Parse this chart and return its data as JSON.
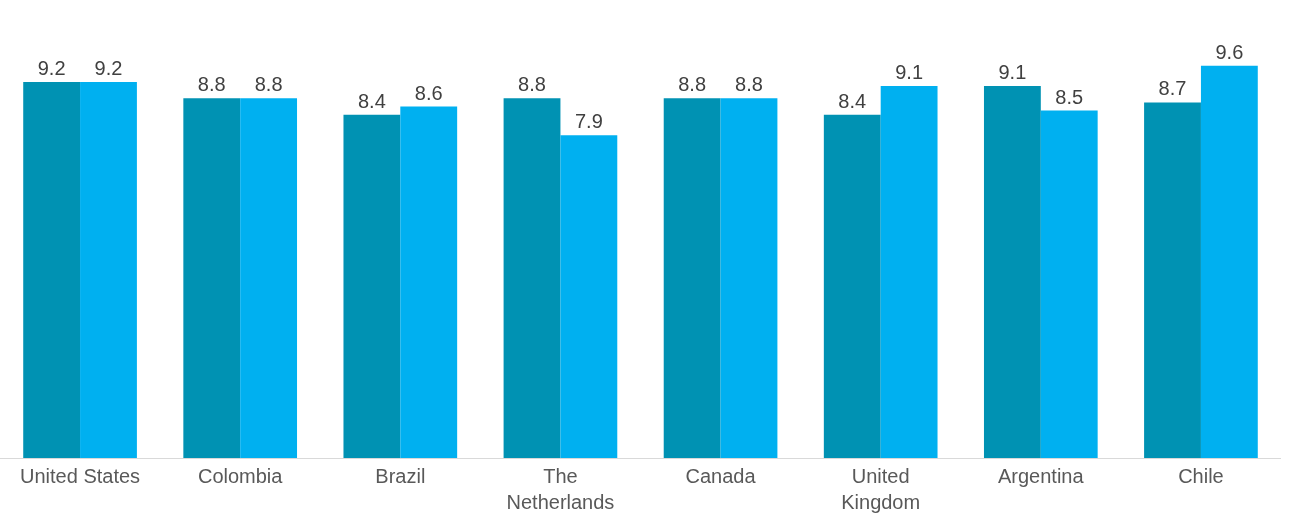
{
  "chart_data": {
    "type": "bar",
    "categories": [
      "United States",
      "Colombia",
      "Brazil",
      "The\nNetherlands",
      "Canada",
      "United\nKingdom",
      "Argentina",
      "Chile"
    ],
    "series": [
      {
        "color": "#0092b3",
        "values": [
          9.2,
          8.8,
          8.4,
          8.8,
          8.8,
          8.4,
          9.1,
          8.7
        ]
      },
      {
        "color": "#00b0f0",
        "values": [
          9.2,
          8.8,
          8.6,
          7.9,
          8.8,
          9.1,
          8.5,
          9.6
        ]
      }
    ],
    "data_labels": true,
    "tick_labels": "x"
  }
}
